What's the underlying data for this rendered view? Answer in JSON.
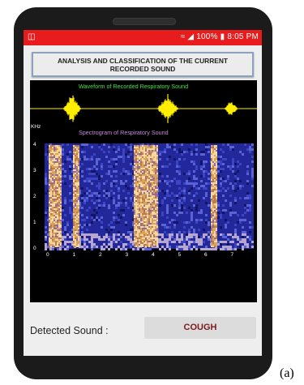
{
  "status_bar": {
    "time": "8:05 PM",
    "battery": "100%",
    "color": "#e81c1c"
  },
  "title": {
    "line1": "ANALYSIS AND CLASSIFICATION OF THE CURRENT",
    "line2": "RECORDED SOUND"
  },
  "waveform": {
    "caption": "Waveform of Recorded Respiratory Sound",
    "caption_color": "#3ee63e",
    "wave_color": "#ffee00"
  },
  "spectrogram": {
    "caption": "Spectrogram of Respiratory Sound",
    "caption_color": "#c98ae0",
    "y_unit": "KHz",
    "y_ticks": [
      "4",
      "3",
      "2",
      "1",
      "0"
    ],
    "x_ticks": [
      "0",
      "1",
      "2",
      "3",
      "4",
      "5",
      "6",
      "7"
    ]
  },
  "result": {
    "label": "Detected Sound :",
    "value": "COUGH",
    "value_color": "#7a1a1a"
  },
  "figure_label": "(a)"
}
